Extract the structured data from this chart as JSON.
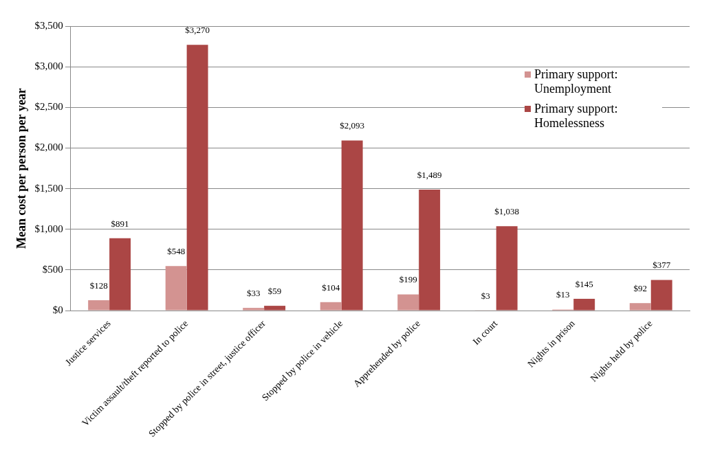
{
  "chart_data": {
    "type": "bar",
    "ylabel": "Mean cost per person per year",
    "categories": [
      "Justice services",
      "Victim assault/theft reported to police",
      "Stopped by police in street, justice officer",
      "Stopped by police in vehicle",
      "Apprehended by police",
      "In court",
      "Nights in prison",
      "Nights held by police"
    ],
    "series": [
      {
        "name": "Primary support: Unemployment",
        "color": "#d39391",
        "values": [
          128,
          548,
          33,
          104,
          199,
          3,
          13,
          92
        ],
        "value_labels": [
          "$128",
          "$548",
          "$33",
          "$104",
          "$199",
          "$3",
          "$13",
          "$92"
        ]
      },
      {
        "name": "Primary support: Homelessness",
        "color": "#ab4645",
        "values": [
          891,
          3270,
          59,
          2093,
          1489,
          1038,
          145,
          377
        ],
        "value_labels": [
          "$891",
          "$3,270",
          "$59",
          "$2,093",
          "$1,489",
          "$1,038",
          "$145",
          "$377"
        ]
      }
    ],
    "ylim": [
      0,
      3500
    ],
    "yticks": [
      {
        "value": 0,
        "label": "$0"
      },
      {
        "value": 500,
        "label": "$500"
      },
      {
        "value": 1000,
        "label": "$1,000"
      },
      {
        "value": 1500,
        "label": "$1,500"
      },
      {
        "value": 2000,
        "label": "$2,000"
      },
      {
        "value": 2500,
        "label": "$2,500"
      },
      {
        "value": 3000,
        "label": "$3,000"
      },
      {
        "value": 3500,
        "label": "$3,500"
      }
    ],
    "grid": "y",
    "legend": "top right"
  }
}
